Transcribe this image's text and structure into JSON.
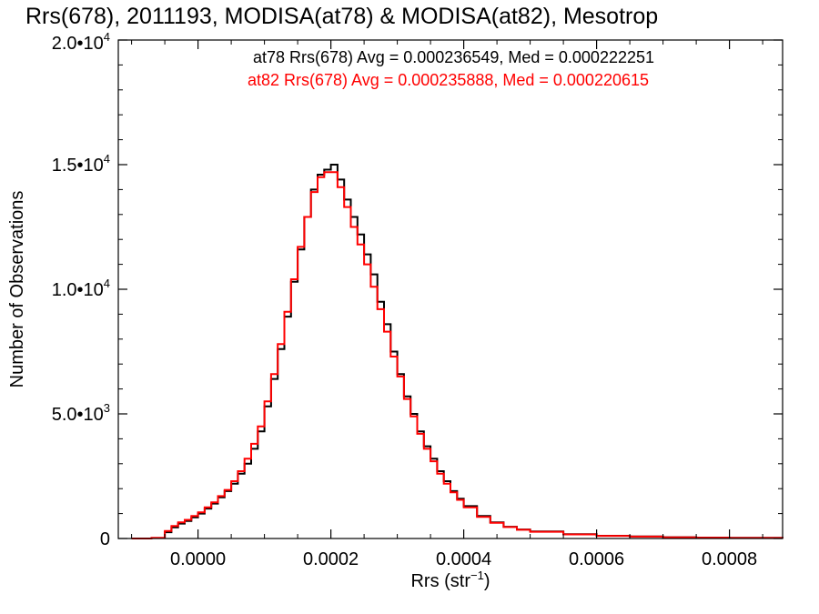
{
  "chart_data": {
    "type": "line",
    "title": "Rrs(678), 2011193, MODISA(at78) & MODISA(at82), Mesotrop",
    "xlabel": "Rrs (str",
    "xlabel_sup": "−1",
    "xlabel_close": ")",
    "ylabel": "Number of Observations",
    "xlim": [
      -0.00012,
      0.00088
    ],
    "ylim": [
      0,
      20000
    ],
    "xticks": [
      {
        "value": 0.0,
        "label": "0.0000"
      },
      {
        "value": 0.0002,
        "label": "0.0002"
      },
      {
        "value": 0.0004,
        "label": "0.0004"
      },
      {
        "value": 0.0006,
        "label": "0.0006"
      },
      {
        "value": 0.0008,
        "label": "0.0008"
      }
    ],
    "yticks": [
      {
        "value": 0,
        "mant": "0",
        "exp": ""
      },
      {
        "value": 5000,
        "mant": "5.0•10",
        "exp": "3"
      },
      {
        "value": 10000,
        "mant": "1.0•10",
        "exp": "4"
      },
      {
        "value": 15000,
        "mant": "1.5•10",
        "exp": "4"
      },
      {
        "value": 20000,
        "mant": "2.0•10",
        "exp": "4"
      }
    ],
    "grid": false,
    "annotations": [
      {
        "text": "at78 Rrs(678) Avg = 0.000236549, Med = 0.000222251",
        "color": "#000000"
      },
      {
        "text": "at82 Rrs(678) Avg = 0.000235888, Med = 0.000220615",
        "color": "#ff0000"
      }
    ],
    "x": [
      -0.0001,
      -7e-05,
      -5e-05,
      -4e-05,
      -3e-05,
      -2e-05,
      -1e-05,
      0.0,
      1e-05,
      2e-05,
      3e-05,
      4e-05,
      5e-05,
      6e-05,
      7e-05,
      8e-05,
      9e-05,
      0.0001,
      0.00011,
      0.00012,
      0.00013,
      0.00014,
      0.00015,
      0.00016,
      0.00017,
      0.00018,
      0.00019,
      0.0002,
      0.00021,
      0.00022,
      0.00023,
      0.00024,
      0.00025,
      0.00026,
      0.00027,
      0.00028,
      0.00029,
      0.0003,
      0.00031,
      0.00032,
      0.00033,
      0.00034,
      0.00035,
      0.00036,
      0.00037,
      0.00038,
      0.00039,
      0.0004,
      0.00042,
      0.00044,
      0.00046,
      0.00048,
      0.0005,
      0.00055,
      0.0006,
      0.00065,
      0.0007,
      0.00075,
      0.0008,
      0.00088
    ],
    "series": [
      {
        "name": "at78",
        "color": "#000000",
        "values": [
          0,
          20,
          250,
          450,
          600,
          700,
          850,
          1000,
          1200,
          1400,
          1650,
          1900,
          2200,
          2600,
          3000,
          3600,
          4300,
          5300,
          6400,
          7600,
          8900,
          10300,
          11600,
          12900,
          14000,
          14600,
          14800,
          15000,
          14400,
          13600,
          12900,
          12200,
          11400,
          10600,
          9500,
          8600,
          7500,
          6600,
          5700,
          5000,
          4300,
          3700,
          3200,
          2700,
          2300,
          1900,
          1600,
          1300,
          900,
          650,
          470,
          360,
          280,
          170,
          110,
          80,
          50,
          35,
          25,
          10
        ]
      },
      {
        "name": "at82",
        "color": "#ff0000",
        "values": [
          0,
          30,
          300,
          500,
          650,
          750,
          900,
          1050,
          1250,
          1450,
          1700,
          1950,
          2300,
          2700,
          3200,
          3800,
          4500,
          5500,
          6600,
          7800,
          9100,
          10400,
          11700,
          12900,
          13900,
          14500,
          14700,
          14700,
          14100,
          13300,
          12500,
          11800,
          11000,
          10100,
          9200,
          8300,
          7300,
          6500,
          5600,
          4900,
          4200,
          3600,
          3100,
          2600,
          2200,
          1850,
          1550,
          1250,
          870,
          630,
          460,
          350,
          270,
          165,
          105,
          75,
          48,
          33,
          22,
          10
        ]
      }
    ]
  }
}
